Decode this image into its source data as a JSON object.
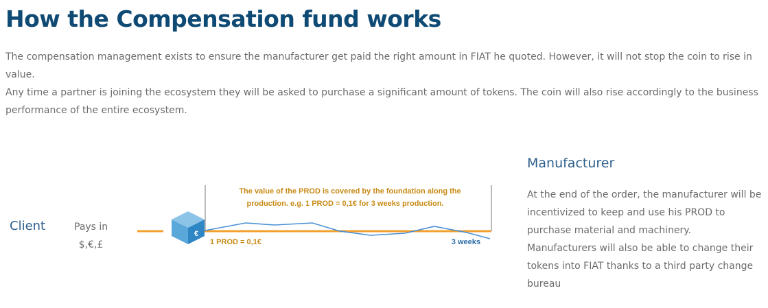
{
  "header": {
    "title": "How the Compensation fund works"
  },
  "intro": [
    "The compensation management exists to ensure the manufacturer get paid the right amount in FIAT he quoted. However, it will not stop the coin to rise in value.",
    "Any time a partner is joining the ecosystem they will be asked to purchase a significant amount of tokens. The coin will also rise accordingly to the business performance of the entire ecosystem."
  ],
  "client": {
    "label": "Client",
    "pays_in": "Pays in",
    "currencies": "$,€,£"
  },
  "graph": {
    "note": [
      "The value of the PROD is covered by the foundation along the",
      "production. e.g. 1 PROD = 0,1€ for 3 weeks production."
    ],
    "start_label": "1 PROD = 0,1€",
    "end_label": "3 weeks"
  },
  "manufacturer": {
    "heading": "Manufacturer",
    "text": [
      "At the end of the order, the manufacturer will be incentivized to keep and use his PROD to purchase material and machinery.",
      "Manufacturers will also be able to change their tokens into FIAT thanks to a third party change bureau"
    ]
  }
}
